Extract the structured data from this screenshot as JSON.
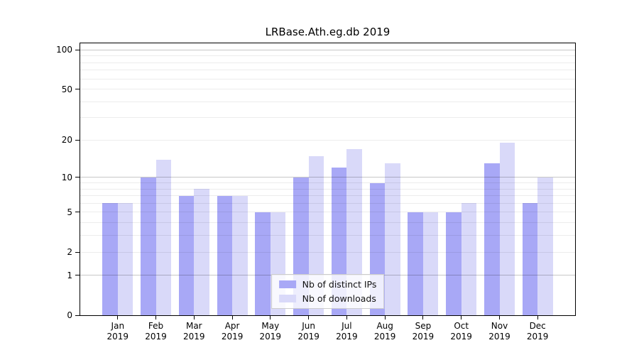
{
  "chart_data": {
    "type": "bar",
    "title": "LRBase.Ath.eg.db 2019",
    "categories": [
      "Jan",
      "Feb",
      "Mar",
      "Apr",
      "May",
      "Jun",
      "Jul",
      "Aug",
      "Sep",
      "Oct",
      "Nov",
      "Dec"
    ],
    "year": "2019",
    "series": [
      {
        "name": "Nb of distinct IPs",
        "color": "#a8a8f6",
        "values": [
          6,
          10,
          7,
          7,
          5,
          10,
          12,
          9,
          5,
          5,
          13,
          6
        ]
      },
      {
        "name": "Nb of downloads",
        "color": "#d9d9f9",
        "values": [
          6,
          14,
          8,
          7,
          5,
          15,
          17,
          13,
          5,
          6,
          19,
          10
        ]
      }
    ],
    "y_axis": {
      "scale": "log1p",
      "max": 113.6,
      "ticks": [
        0,
        1,
        2,
        5,
        10,
        20,
        50,
        100
      ],
      "major_gridlines": [
        1,
        10,
        100
      ],
      "minor_gridlines": [
        2,
        3,
        4,
        5,
        6,
        7,
        8,
        9,
        20,
        30,
        40,
        50,
        60,
        70,
        80,
        90
      ]
    },
    "x_axis": {
      "grid": false
    },
    "legend": {
      "position": "lower center"
    },
    "colors": {
      "major_grid": "rgba(0,0,0,0.22)",
      "minor_grid": "rgba(0,0,0,0.075)",
      "spine": "#000000",
      "background": "#ffffff"
    }
  }
}
